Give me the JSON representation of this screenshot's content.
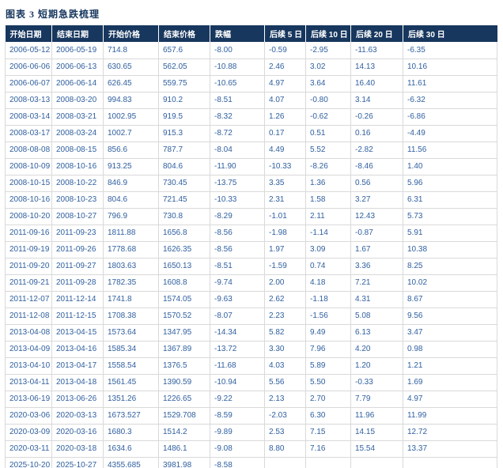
{
  "figure": {
    "title": "图表 3  短期急跌梳理"
  },
  "colors": {
    "header_bg": "#17375E",
    "header_text": "#FFFFFF",
    "title_text": "#17375E",
    "body_text": "#2F5F9F",
    "grid_line": "#D9D9D9",
    "page_bg": "#FFFFFF"
  },
  "chart_data": {
    "type": "table",
    "title": "图表 3 短期急跌梳理",
    "columns": [
      "开始日期",
      "结束日期",
      "开始价格",
      "结束价格",
      "跌幅",
      "后续 5 日",
      "后续 10 日",
      "后续 20 日",
      "后续 30 日"
    ],
    "rows": [
      [
        "2006-05-12",
        "2006-05-19",
        "714.8",
        "657.6",
        "-8.00",
        "-0.59",
        "-2.95",
        "-11.63",
        "-6.35"
      ],
      [
        "2006-06-06",
        "2006-06-13",
        "630.65",
        "562.05",
        "-10.88",
        "2.46",
        "3.02",
        "14.13",
        "10.16"
      ],
      [
        "2006-06-07",
        "2006-06-14",
        "626.45",
        "559.75",
        "-10.65",
        "4.97",
        "3.64",
        "16.40",
        "11.61"
      ],
      [
        "2008-03-13",
        "2008-03-20",
        "994.83",
        "910.2",
        "-8.51",
        "4.07",
        "-0.80",
        "3.14",
        "-6.32"
      ],
      [
        "2008-03-14",
        "2008-03-21",
        "1002.95",
        "919.5",
        "-8.32",
        "1.26",
        "-0.62",
        "-0.26",
        "-6.86"
      ],
      [
        "2008-03-17",
        "2008-03-24",
        "1002.7",
        "915.3",
        "-8.72",
        "0.17",
        "0.51",
        "0.16",
        "-4.49"
      ],
      [
        "2008-08-08",
        "2008-08-15",
        "856.6",
        "787.7",
        "-8.04",
        "4.49",
        "5.52",
        "-2.82",
        "11.56"
      ],
      [
        "2008-10-09",
        "2008-10-16",
        "913.25",
        "804.6",
        "-11.90",
        "-10.33",
        "-8.26",
        "-8.46",
        "1.40"
      ],
      [
        "2008-10-15",
        "2008-10-22",
        "846.9",
        "730.45",
        "-13.75",
        "3.35",
        "1.36",
        "0.56",
        "5.96"
      ],
      [
        "2008-10-16",
        "2008-10-23",
        "804.6",
        "721.45",
        "-10.33",
        "2.31",
        "1.58",
        "3.27",
        "6.31"
      ],
      [
        "2008-10-20",
        "2008-10-27",
        "796.9",
        "730.8",
        "-8.29",
        "-1.01",
        "2.11",
        "12.43",
        "5.73"
      ],
      [
        "2011-09-16",
        "2011-09-23",
        "1811.88",
        "1656.8",
        "-8.56",
        "-1.98",
        "-1.14",
        "-0.87",
        "5.91"
      ],
      [
        "2011-09-19",
        "2011-09-26",
        "1778.68",
        "1626.35",
        "-8.56",
        "1.97",
        "3.09",
        "1.67",
        "10.38"
      ],
      [
        "2011-09-20",
        "2011-09-27",
        "1803.63",
        "1650.13",
        "-8.51",
        "-1.59",
        "0.74",
        "3.36",
        "8.25"
      ],
      [
        "2011-09-21",
        "2011-09-28",
        "1782.35",
        "1608.8",
        "-9.74",
        "2.00",
        "4.18",
        "7.21",
        "10.02"
      ],
      [
        "2011-12-07",
        "2011-12-14",
        "1741.8",
        "1574.05",
        "-9.63",
        "2.62",
        "-1.18",
        "4.31",
        "8.67"
      ],
      [
        "2011-12-08",
        "2011-12-15",
        "1708.38",
        "1570.52",
        "-8.07",
        "2.23",
        "-1.56",
        "5.08",
        "9.56"
      ],
      [
        "2013-04-08",
        "2013-04-15",
        "1573.64",
        "1347.95",
        "-14.34",
        "5.82",
        "9.49",
        "6.13",
        "3.47"
      ],
      [
        "2013-04-09",
        "2013-04-16",
        "1585.34",
        "1367.89",
        "-13.72",
        "3.30",
        "7.96",
        "4.20",
        "0.98"
      ],
      [
        "2013-04-10",
        "2013-04-17",
        "1558.54",
        "1376.5",
        "-11.68",
        "4.03",
        "5.89",
        "1.20",
        "1.21"
      ],
      [
        "2013-04-11",
        "2013-04-18",
        "1561.45",
        "1390.59",
        "-10.94",
        "5.56",
        "5.50",
        "-0.33",
        "1.69"
      ],
      [
        "2013-06-19",
        "2013-06-26",
        "1351.26",
        "1226.65",
        "-9.22",
        "2.13",
        "2.70",
        "7.79",
        "4.97"
      ],
      [
        "2020-03-06",
        "2020-03-13",
        "1673.527",
        "1529.708",
        "-8.59",
        "-2.03",
        "6.30",
        "11.96",
        "11.99"
      ],
      [
        "2020-03-09",
        "2020-03-16",
        "1680.3",
        "1514.2",
        "-9.89",
        "2.53",
        "7.15",
        "14.15",
        "12.72"
      ],
      [
        "2020-03-11",
        "2020-03-18",
        "1634.6",
        "1486.1",
        "-9.08",
        "8.80",
        "7.16",
        "15.54",
        "13.37"
      ],
      [
        "2025-10-20",
        "2025-10-27",
        "4355.685",
        "3981.98",
        "-8.58",
        "",
        "",
        "",
        ""
      ]
    ]
  }
}
